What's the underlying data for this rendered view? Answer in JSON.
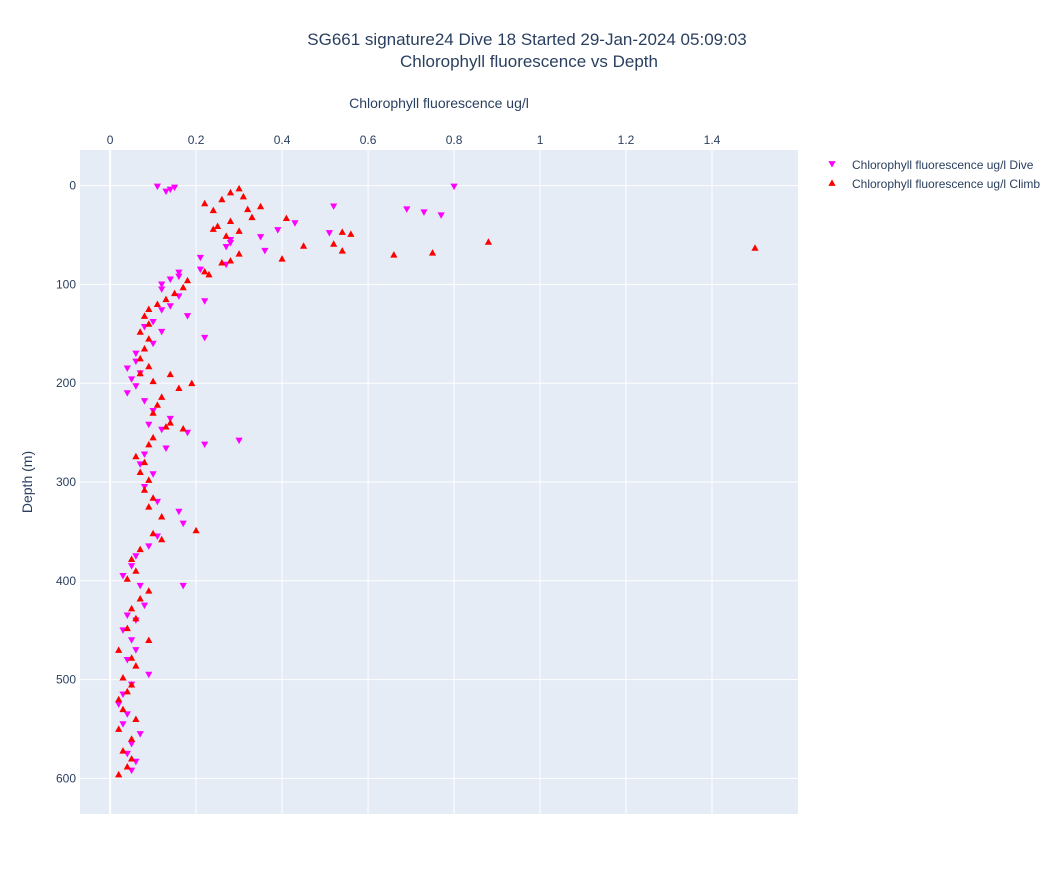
{
  "chart_data": {
    "type": "scatter",
    "title": [
      "SG661 signature24 Dive 18 Started 29-Jan-2024 05:09:03",
      "Chlorophyll fluorescence vs Depth"
    ],
    "xlabel": "Chlorophyll fluorescence ug/l",
    "ylabel": "Depth (m)",
    "xlim": [
      -0.07,
      1.6
    ],
    "ylim": [
      636,
      -36
    ],
    "x_axis_position": "top",
    "y_reversed": true,
    "grid": true,
    "legend_position": "top-right",
    "x_ticks": [
      "0",
      "0.2",
      "0.4",
      "0.6",
      "0.8",
      "1",
      "1.2",
      "1.4"
    ],
    "y_ticks": [
      "0",
      "100",
      "200",
      "300",
      "400",
      "500",
      "600"
    ],
    "series": [
      {
        "name": "Chlorophyll fluorescence ug/l Dive",
        "marker": "triangle-down",
        "color": "#ff00ff",
        "points": [
          [
            0.8,
            1
          ],
          [
            0.11,
            1
          ],
          [
            0.15,
            2
          ],
          [
            0.14,
            4
          ],
          [
            0.13,
            6
          ],
          [
            0.52,
            21
          ],
          [
            0.69,
            24
          ],
          [
            0.73,
            27
          ],
          [
            0.77,
            30
          ],
          [
            0.43,
            38
          ],
          [
            0.39,
            45
          ],
          [
            0.51,
            48
          ],
          [
            0.35,
            52
          ],
          [
            0.28,
            55
          ],
          [
            0.28,
            58
          ],
          [
            0.27,
            62
          ],
          [
            0.36,
            66
          ],
          [
            0.21,
            73
          ],
          [
            0.27,
            80
          ],
          [
            0.21,
            85
          ],
          [
            0.16,
            88
          ],
          [
            0.16,
            92
          ],
          [
            0.14,
            95
          ],
          [
            0.12,
            100
          ],
          [
            0.12,
            105
          ],
          [
            0.16,
            112
          ],
          [
            0.22,
            117
          ],
          [
            0.14,
            122
          ],
          [
            0.12,
            126
          ],
          [
            0.18,
            132
          ],
          [
            0.1,
            138
          ],
          [
            0.08,
            143
          ],
          [
            0.12,
            148
          ],
          [
            0.22,
            154
          ],
          [
            0.1,
            160
          ],
          [
            0.06,
            170
          ],
          [
            0.06,
            178
          ],
          [
            0.04,
            185
          ],
          [
            0.07,
            190
          ],
          [
            0.05,
            196
          ],
          [
            0.06,
            203
          ],
          [
            0.04,
            210
          ],
          [
            0.08,
            218
          ],
          [
            0.1,
            228
          ],
          [
            0.14,
            236
          ],
          [
            0.09,
            242
          ],
          [
            0.12,
            247
          ],
          [
            0.18,
            250
          ],
          [
            0.3,
            258
          ],
          [
            0.22,
            262
          ],
          [
            0.13,
            266
          ],
          [
            0.08,
            272
          ],
          [
            0.07,
            282
          ],
          [
            0.1,
            292
          ],
          [
            0.08,
            305
          ],
          [
            0.11,
            320
          ],
          [
            0.16,
            330
          ],
          [
            0.17,
            342
          ],
          [
            0.11,
            355
          ],
          [
            0.09,
            365
          ],
          [
            0.06,
            375
          ],
          [
            0.05,
            385
          ],
          [
            0.03,
            395
          ],
          [
            0.07,
            405
          ],
          [
            0.17,
            405
          ],
          [
            0.08,
            425
          ],
          [
            0.04,
            435
          ],
          [
            0.06,
            440
          ],
          [
            0.03,
            450
          ],
          [
            0.05,
            460
          ],
          [
            0.06,
            470
          ],
          [
            0.04,
            480
          ],
          [
            0.09,
            495
          ],
          [
            0.05,
            505
          ],
          [
            0.03,
            515
          ],
          [
            0.02,
            525
          ],
          [
            0.04,
            535
          ],
          [
            0.03,
            545
          ],
          [
            0.07,
            555
          ],
          [
            0.05,
            565
          ],
          [
            0.04,
            575
          ],
          [
            0.06,
            583
          ],
          [
            0.05,
            592
          ]
        ]
      },
      {
        "name": "Chlorophyll fluorescence ug/l Climb",
        "marker": "triangle-up",
        "color": "#ff0000",
        "points": [
          [
            1.5,
            63
          ],
          [
            0.88,
            57
          ],
          [
            0.75,
            68
          ],
          [
            0.66,
            70
          ],
          [
            0.56,
            49
          ],
          [
            0.54,
            66
          ],
          [
            0.54,
            47
          ],
          [
            0.52,
            59
          ],
          [
            0.45,
            61
          ],
          [
            0.4,
            74
          ],
          [
            0.41,
            33
          ],
          [
            0.35,
            21
          ],
          [
            0.33,
            32
          ],
          [
            0.31,
            11
          ],
          [
            0.3,
            3
          ],
          [
            0.28,
            7
          ],
          [
            0.22,
            18
          ],
          [
            0.24,
            25
          ],
          [
            0.26,
            14
          ],
          [
            0.25,
            41
          ],
          [
            0.32,
            24
          ],
          [
            0.3,
            46
          ],
          [
            0.28,
            36
          ],
          [
            0.27,
            51
          ],
          [
            0.24,
            44
          ],
          [
            0.22,
            87
          ],
          [
            0.23,
            90
          ],
          [
            0.26,
            78
          ],
          [
            0.3,
            69
          ],
          [
            0.28,
            76
          ],
          [
            0.18,
            96
          ],
          [
            0.17,
            103
          ],
          [
            0.15,
            109
          ],
          [
            0.13,
            115
          ],
          [
            0.11,
            120
          ],
          [
            0.09,
            125
          ],
          [
            0.08,
            132
          ],
          [
            0.09,
            140
          ],
          [
            0.07,
            148
          ],
          [
            0.09,
            155
          ],
          [
            0.08,
            165
          ],
          [
            0.07,
            175
          ],
          [
            0.09,
            183
          ],
          [
            0.07,
            190
          ],
          [
            0.14,
            191
          ],
          [
            0.16,
            205
          ],
          [
            0.19,
            200
          ],
          [
            0.1,
            198
          ],
          [
            0.12,
            214
          ],
          [
            0.11,
            222
          ],
          [
            0.1,
            230
          ],
          [
            0.14,
            240
          ],
          [
            0.13,
            244
          ],
          [
            0.17,
            246
          ],
          [
            0.1,
            255
          ],
          [
            0.09,
            262
          ],
          [
            0.06,
            274
          ],
          [
            0.08,
            280
          ],
          [
            0.07,
            290
          ],
          [
            0.09,
            298
          ],
          [
            0.08,
            308
          ],
          [
            0.1,
            316
          ],
          [
            0.09,
            325
          ],
          [
            0.12,
            335
          ],
          [
            0.2,
            349
          ],
          [
            0.1,
            352
          ],
          [
            0.12,
            358
          ],
          [
            0.07,
            368
          ],
          [
            0.05,
            378
          ],
          [
            0.06,
            390
          ],
          [
            0.04,
            398
          ],
          [
            0.09,
            410
          ],
          [
            0.07,
            418
          ],
          [
            0.05,
            428
          ],
          [
            0.06,
            438
          ],
          [
            0.04,
            448
          ],
          [
            0.09,
            460
          ],
          [
            0.02,
            470
          ],
          [
            0.05,
            478
          ],
          [
            0.06,
            486
          ],
          [
            0.03,
            498
          ],
          [
            0.05,
            505
          ],
          [
            0.04,
            512
          ],
          [
            0.02,
            520
          ],
          [
            0.03,
            530
          ],
          [
            0.06,
            540
          ],
          [
            0.02,
            550
          ],
          [
            0.05,
            560
          ],
          [
            0.03,
            572
          ],
          [
            0.05,
            580
          ],
          [
            0.04,
            588
          ],
          [
            0.02,
            596
          ]
        ]
      }
    ]
  }
}
